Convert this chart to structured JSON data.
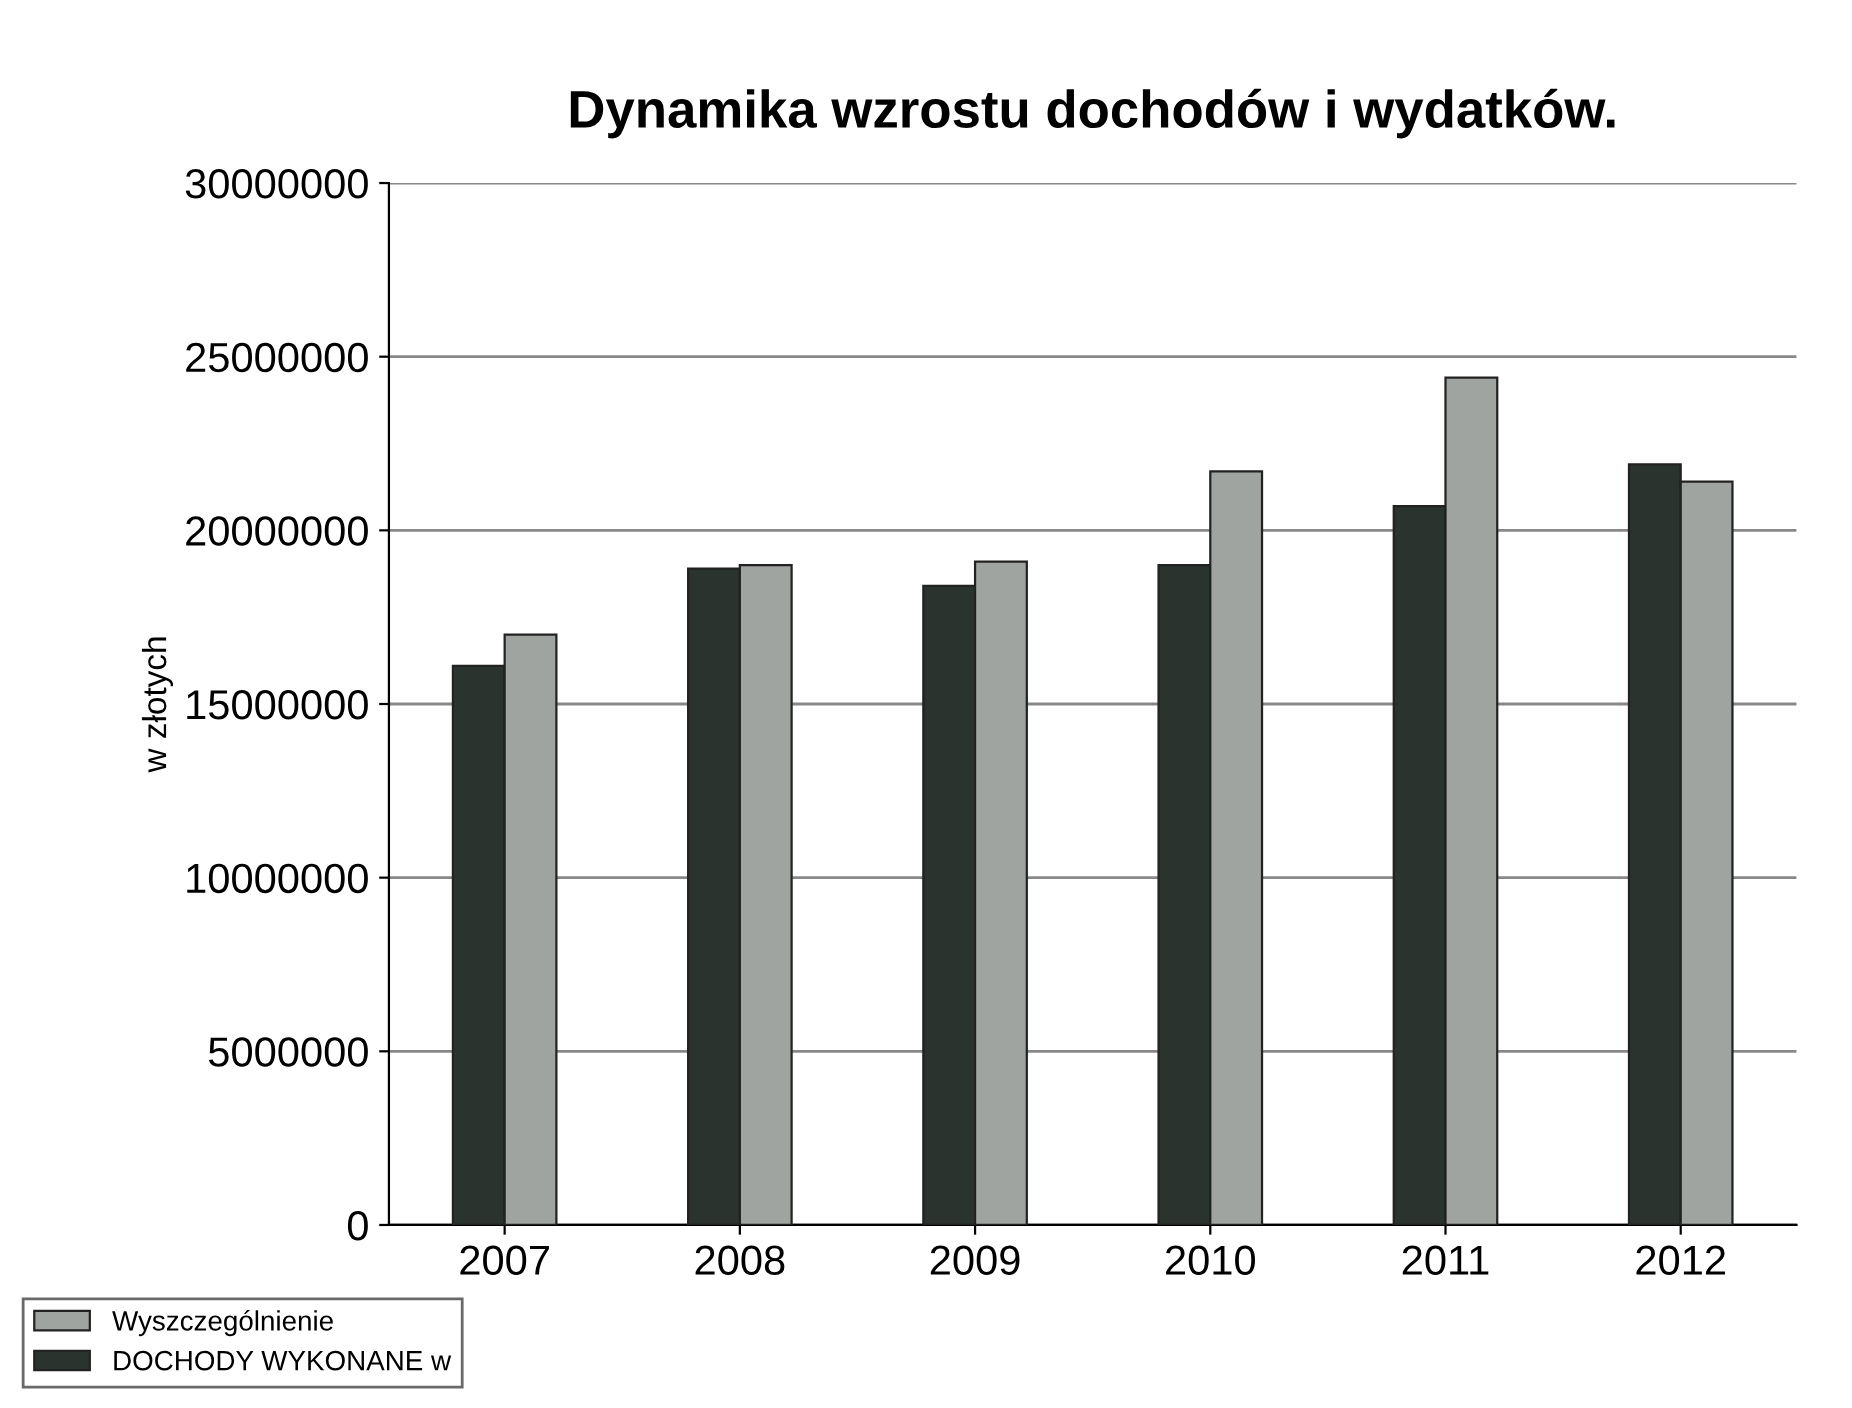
{
  "chart_data": {
    "type": "bar",
    "title": "Dynamika wzrostu dochodów i wydatków.",
    "ylabel": "w złotych",
    "categories": [
      "2007",
      "2008",
      "2009",
      "2010",
      "2011",
      "2012"
    ],
    "series": [
      {
        "name": "DOCHODY WYKONANE w",
        "color": "#2a332d",
        "values": [
          16100000,
          18900000,
          18400000,
          19000000,
          20700000,
          21900000
        ]
      },
      {
        "name": "Wyszczególnienie",
        "color": "#a0a4a0",
        "values": [
          17000000,
          19000000,
          19100000,
          21700000,
          24400000,
          21400000
        ]
      }
    ],
    "ylim": [
      0,
      30000000
    ],
    "yticks": [
      0,
      5000000,
      10000000,
      15000000,
      20000000,
      25000000,
      30000000
    ],
    "grid": "y",
    "legend": "bottom left"
  }
}
